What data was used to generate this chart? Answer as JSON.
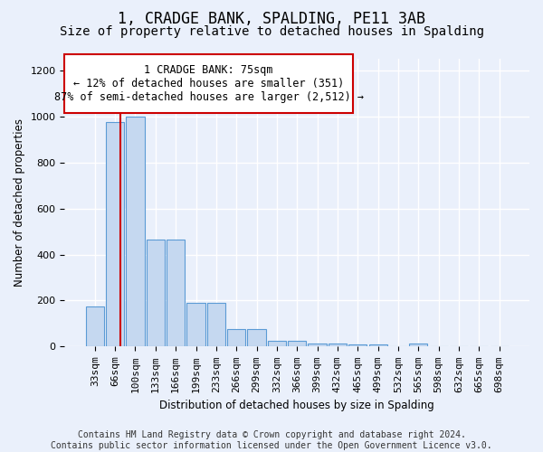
{
  "title": "1, CRADGE BANK, SPALDING, PE11 3AB",
  "subtitle": "Size of property relative to detached houses in Spalding",
  "xlabel": "Distribution of detached houses by size in Spalding",
  "ylabel": "Number of detached properties",
  "footer_line1": "Contains HM Land Registry data © Crown copyright and database right 2024.",
  "footer_line2": "Contains public sector information licensed under the Open Government Licence v3.0.",
  "annotation_line1": "1 CRADGE BANK: 75sqm",
  "annotation_line2": "← 12% of detached houses are smaller (351)",
  "annotation_line3": "87% of semi-detached houses are larger (2,512) →",
  "bar_labels": [
    "33sqm",
    "66sqm",
    "100sqm",
    "133sqm",
    "166sqm",
    "199sqm",
    "233sqm",
    "266sqm",
    "299sqm",
    "332sqm",
    "366sqm",
    "399sqm",
    "432sqm",
    "465sqm",
    "499sqm",
    "532sqm",
    "565sqm",
    "598sqm",
    "632sqm",
    "665sqm",
    "698sqm"
  ],
  "bar_values": [
    175,
    975,
    1000,
    465,
    465,
    190,
    190,
    75,
    75,
    25,
    25,
    15,
    15,
    10,
    10,
    0,
    15,
    0,
    0,
    0,
    0
  ],
  "bar_color": "#c5d8f0",
  "bar_edge_color": "#5b9bd5",
  "vline_color": "#cc0000",
  "ylim": [
    0,
    1250
  ],
  "yticks": [
    0,
    200,
    400,
    600,
    800,
    1000,
    1200
  ],
  "background_color": "#eaf0fb",
  "grid_color": "#ffffff",
  "title_fontsize": 12,
  "subtitle_fontsize": 10,
  "axis_label_fontsize": 8.5,
  "tick_fontsize": 8,
  "footer_fontsize": 7,
  "annotation_fontsize": 8.5,
  "annotation_box_color": "#ffffff",
  "annotation_box_edge": "#cc0000"
}
